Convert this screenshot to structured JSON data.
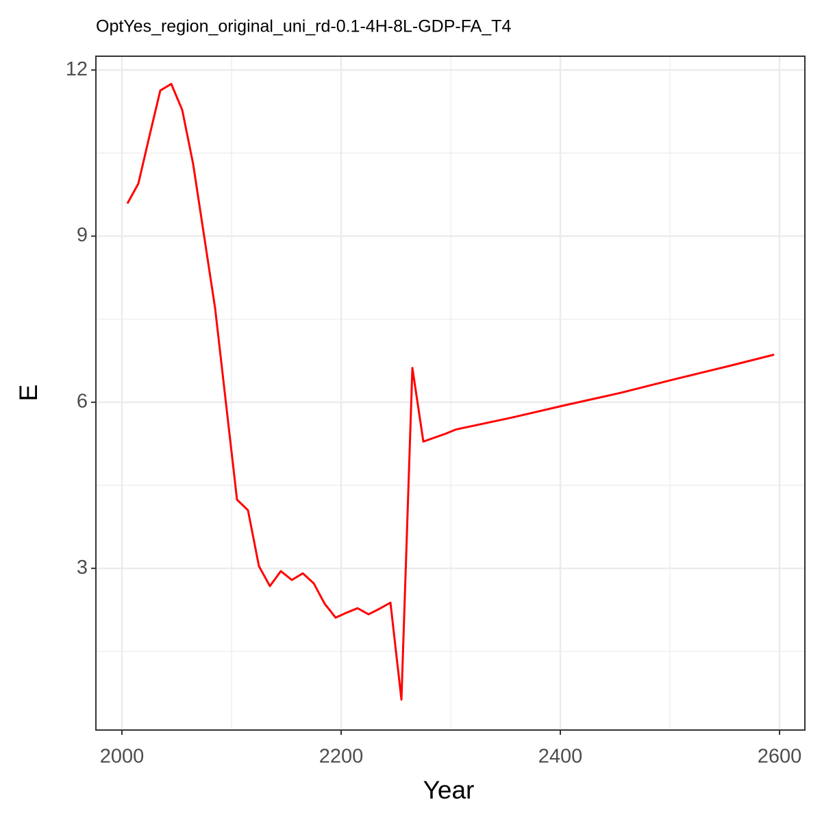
{
  "chart_data": {
    "type": "line",
    "title": "OptYes_region_original_uni_rd-0.1-4H-8L-GDP-FA_T4",
    "x_label": "Year",
    "y_label": "E",
    "series": [
      {
        "color": "#ff0000",
        "x": [
          2005,
          2015,
          2025,
          2035,
          2045,
          2055,
          2065,
          2075,
          2085,
          2095,
          2105,
          2115,
          2125,
          2135,
          2145,
          2155,
          2165,
          2175,
          2185,
          2195,
          2205,
          2215,
          2225,
          2235,
          2245,
          2255,
          2265,
          2275,
          2285,
          2295,
          2305,
          2355,
          2405,
          2455,
          2505,
          2555,
          2595
        ],
        "values": [
          9.59,
          9.95,
          10.8,
          11.63,
          11.75,
          11.28,
          10.3,
          9.0,
          7.7,
          5.97,
          4.24,
          4.05,
          3.04,
          2.68,
          2.95,
          2.79,
          2.91,
          2.73,
          2.36,
          2.11,
          2.2,
          2.28,
          2.17,
          2.27,
          2.38,
          0.63,
          6.62,
          5.29,
          5.36,
          5.43,
          5.51,
          5.72,
          5.95,
          6.17,
          6.42,
          6.66,
          6.86
        ]
      }
    ],
    "xlim": [
      1976.25,
      2623.1
    ],
    "ylim": [
      0.08,
      12.25
    ],
    "xticks": [
      2000,
      2200,
      2400,
      2600
    ],
    "yticks": [
      3,
      6,
      9,
      12
    ],
    "x_minor_grid": [
      2100,
      2300,
      2500
    ],
    "y_minor_grid": [
      1.5,
      4.5,
      7.5,
      10.5
    ],
    "grid": true
  }
}
